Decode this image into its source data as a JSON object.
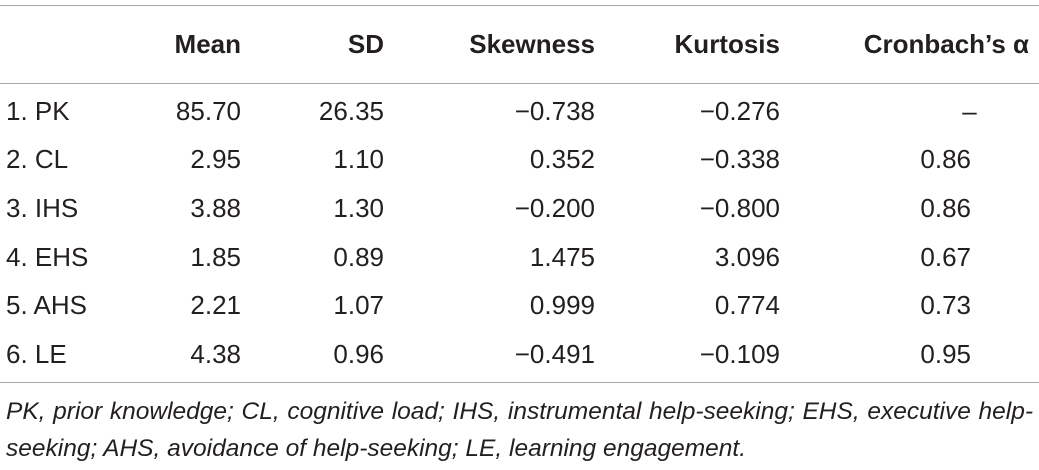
{
  "table": {
    "headers": [
      "",
      "Mean",
      "SD",
      "Skewness",
      "Kurtosis",
      "Cronbach’s α"
    ],
    "rows": [
      [
        "1. PK",
        "85.70",
        "26.35",
        "−0.738",
        "−0.276",
        "–"
      ],
      [
        "2. CL",
        "2.95",
        "1.10",
        "0.352",
        "−0.338",
        "0.86"
      ],
      [
        "3. IHS",
        "3.88",
        "1.30",
        "−0.200",
        "−0.800",
        "0.86"
      ],
      [
        "4. EHS",
        "1.85",
        "0.89",
        "1.475",
        "3.096",
        "0.67"
      ],
      [
        "5. AHS",
        "2.21",
        "1.07",
        "0.999",
        "0.774",
        "0.73"
      ],
      [
        "6. LE",
        "4.38",
        "0.96",
        "−0.491",
        "−0.109",
        "0.95"
      ]
    ]
  },
  "note": "PK, prior knowledge; CL, cognitive load; IHS, instrumental help-seeking; EHS, executive help-seeking; AHS, avoidance of help-seeking; LE, learning engagement."
}
